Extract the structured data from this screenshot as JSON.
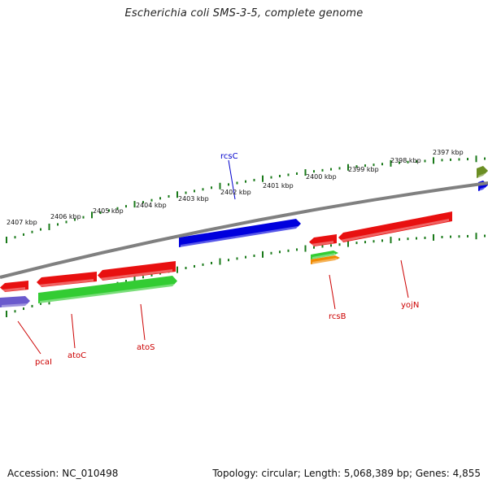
{
  "title": "Escherichia coli SMS-3-5, complete genome",
  "footer": {
    "accession": "Accession: NC_010498",
    "summary": "Topology: circular; Length: 5,068,389 bp; Genes: 4,855"
  },
  "scale_labels": [
    "2407 kbp",
    "2406 kbp",
    "2405 kbp",
    "2404 kbp",
    "2403 kbp",
    "2402 kbp",
    "2401 kbp",
    "2400 kbp",
    "2399 kbp",
    "2398 kbp",
    "2397 kbp"
  ],
  "gene_labels": {
    "rcsC": "rcsC",
    "pcaI": "pcaI",
    "atoC": "atoC",
    "atoS": "atoS",
    "rcsB": "rcsB",
    "yojN": "yojN"
  },
  "colors": {
    "backbone": "#808080",
    "tick": "#1a7a1a",
    "red": "#e81010",
    "green": "#33cc33",
    "blue": "#0000dd",
    "purple": "#6a5acd",
    "orange": "#f08a00",
    "olive": "#6b8e23",
    "label_red": "#cc0000",
    "label_blue": "#0000cc"
  }
}
